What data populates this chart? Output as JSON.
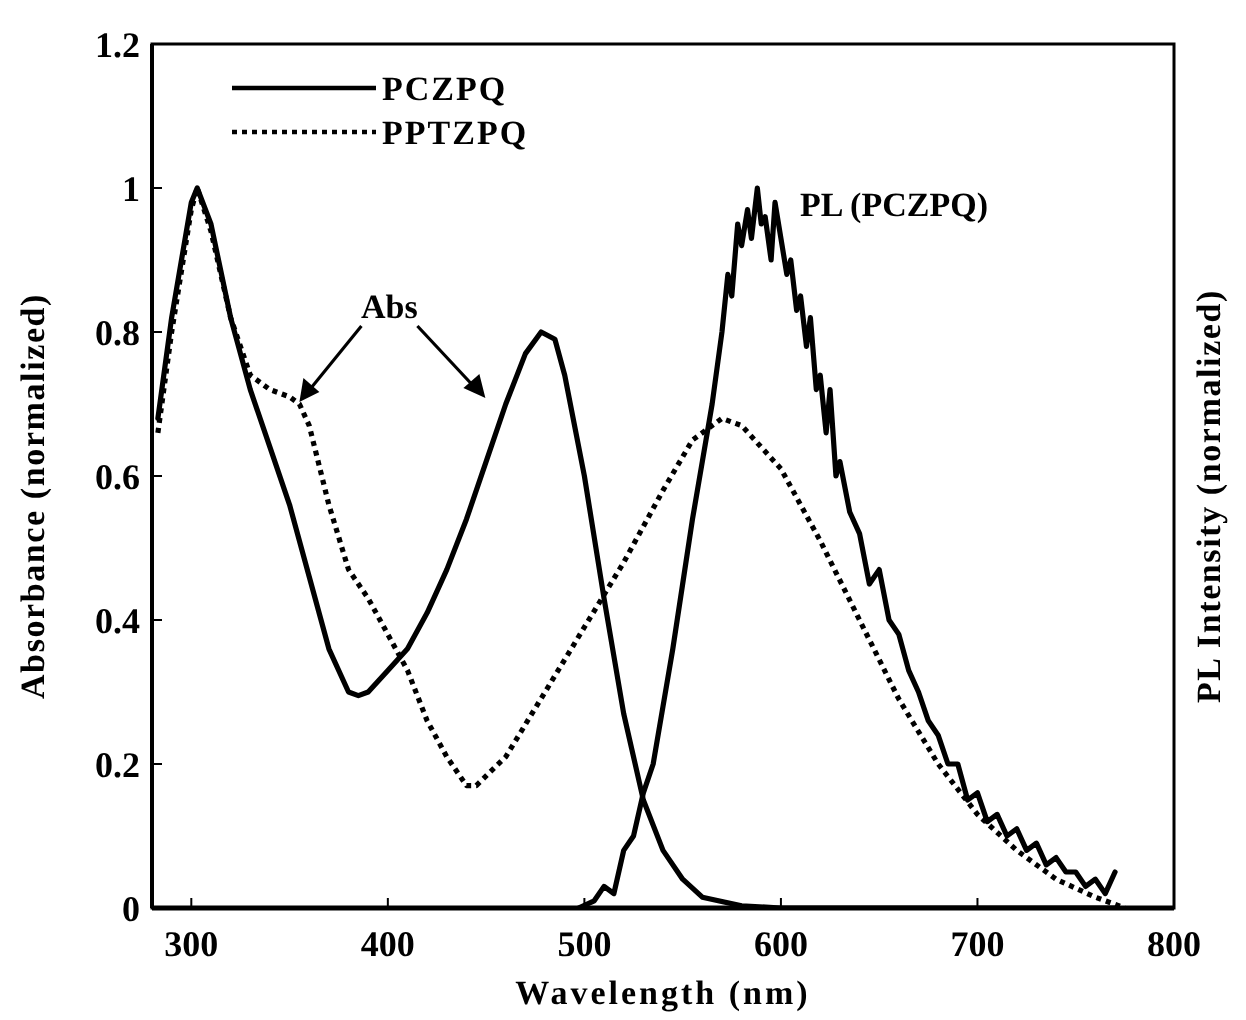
{
  "chart_data": {
    "type": "line",
    "xlabel": "Wavelength (nm)",
    "ylabel": "Absorbance (normalized)",
    "y2label": "PL Intensity (normalized)",
    "xlim": [
      280,
      800
    ],
    "xticks": [
      300,
      400,
      500,
      600,
      700,
      800
    ],
    "ylim": [
      0,
      1.2
    ],
    "yticks": [
      0,
      0.2,
      0.4,
      0.6,
      0.8,
      1,
      1.2
    ],
    "legend": "top left",
    "grid": false,
    "series": [
      {
        "name": "PCZPQ",
        "color": "#000000",
        "line_style": "solid",
        "x": [
          283,
          290,
          300,
          303,
          310,
          320,
          330,
          340,
          350,
          360,
          370,
          380,
          385,
          390,
          400,
          410,
          420,
          430,
          440,
          450,
          460,
          470,
          478,
          485,
          490,
          500,
          510,
          520,
          530,
          540,
          550,
          560,
          580,
          600,
          700,
          770
        ],
        "values": [
          0.68,
          0.82,
          0.98,
          1.0,
          0.95,
          0.82,
          0.72,
          0.64,
          0.56,
          0.46,
          0.36,
          0.3,
          0.295,
          0.3,
          0.33,
          0.36,
          0.41,
          0.47,
          0.54,
          0.62,
          0.7,
          0.77,
          0.8,
          0.79,
          0.74,
          0.6,
          0.43,
          0.27,
          0.15,
          0.08,
          0.04,
          0.015,
          0.003,
          0,
          0,
          0
        ]
      },
      {
        "name": "PPTZPQ",
        "color": "#000000",
        "line_style": "dotted",
        "x": [
          283,
          290,
          300,
          303,
          310,
          320,
          330,
          340,
          350,
          355,
          360,
          370,
          380,
          390,
          400,
          410,
          420,
          430,
          440,
          445,
          460,
          480,
          500,
          520,
          540,
          555,
          570,
          580,
          600,
          620,
          640,
          660,
          680,
          700,
          720,
          740,
          760,
          775
        ],
        "values": [
          0.66,
          0.8,
          0.97,
          1.0,
          0.94,
          0.82,
          0.74,
          0.72,
          0.71,
          0.7,
          0.67,
          0.56,
          0.47,
          0.43,
          0.38,
          0.33,
          0.26,
          0.21,
          0.17,
          0.17,
          0.21,
          0.3,
          0.39,
          0.48,
          0.58,
          0.65,
          0.68,
          0.67,
          0.61,
          0.51,
          0.4,
          0.29,
          0.2,
          0.13,
          0.08,
          0.04,
          0.015,
          0
        ]
      },
      {
        "color": "#000000",
        "line_style": "solid",
        "x": [
          497,
          505,
          510,
          515,
          520,
          525,
          530,
          535,
          540,
          545,
          550,
          555,
          560,
          565,
          570,
          573,
          575,
          578,
          580,
          583,
          585,
          588,
          590,
          592,
          595,
          597,
          600,
          603,
          605,
          608,
          610,
          613,
          615,
          618,
          620,
          623,
          625,
          628,
          630,
          635,
          640,
          645,
          650,
          655,
          660,
          665,
          670,
          675,
          680,
          685,
          690,
          695,
          700,
          705,
          710,
          715,
          720,
          725,
          730,
          735,
          740,
          745,
          750,
          755,
          760,
          765,
          770
        ],
        "values": [
          0,
          0.01,
          0.03,
          0.02,
          0.08,
          0.1,
          0.16,
          0.2,
          0.28,
          0.36,
          0.45,
          0.54,
          0.62,
          0.7,
          0.8,
          0.88,
          0.85,
          0.95,
          0.92,
          0.97,
          0.93,
          1.0,
          0.95,
          0.96,
          0.9,
          0.98,
          0.93,
          0.88,
          0.9,
          0.83,
          0.85,
          0.78,
          0.82,
          0.72,
          0.74,
          0.66,
          0.72,
          0.6,
          0.62,
          0.55,
          0.52,
          0.45,
          0.47,
          0.4,
          0.38,
          0.33,
          0.3,
          0.26,
          0.24,
          0.2,
          0.2,
          0.15,
          0.16,
          0.12,
          0.13,
          0.1,
          0.11,
          0.08,
          0.09,
          0.06,
          0.07,
          0.05,
          0.05,
          0.03,
          0.04,
          0.02,
          0.05
        ]
      }
    ],
    "annotations": [
      {
        "text": "Abs",
        "x": 355,
        "y": 0.7
      },
      "PL (PCZPQ)"
    ]
  }
}
